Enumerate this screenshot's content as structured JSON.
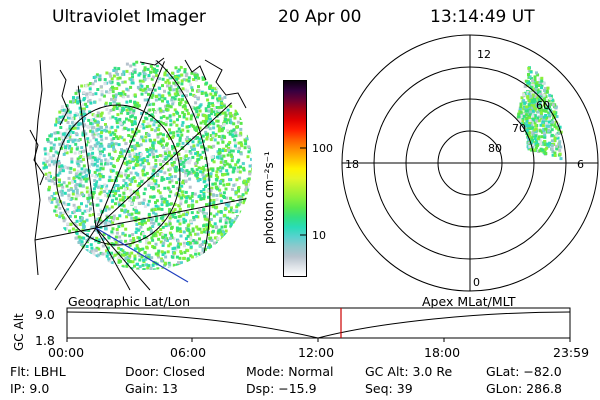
{
  "header": {
    "title": "Ultraviolet Imager",
    "date": "20 Apr 00",
    "time": "13:14:49 UT"
  },
  "colorbar": {
    "unit_label": "photon cm⁻²s⁻¹",
    "tick_labels": [
      "100",
      "10"
    ],
    "colors": [
      "#ffffff",
      "#dde2e7",
      "#b6c3cd",
      "#90c8cc",
      "#59d2cf",
      "#29dcb7",
      "#33e07f",
      "#5ae84b",
      "#8af03a",
      "#b7f22f",
      "#e5f626",
      "#fff200",
      "#ffc000",
      "#ff9000",
      "#ff5a00",
      "#ff1c00",
      "#e00000",
      "#ad0010",
      "#6e0030",
      "#350040",
      "#0b0010"
    ]
  },
  "polar": {
    "mlt_labels": {
      "top": "12",
      "left": "18",
      "right": "6",
      "bottom": "0"
    },
    "lat_labels": [
      "60",
      "70",
      "80"
    ]
  },
  "timeline": {
    "left_label": "Geographic Lat/Lon",
    "right_label": "Apex MLat/MLT",
    "axis_label": "GC Alt",
    "y_ticks": [
      "9.0",
      "1.8"
    ],
    "x_ticks": [
      "00:00",
      "06:00",
      "12:00",
      "18:00",
      "23:59"
    ],
    "current_time_marker_color": "#cc0000"
  },
  "status": {
    "row1": {
      "flt": "Flt: LBHL",
      "door": "Door: Closed",
      "mode": "Mode: Normal",
      "gc_alt": "GC Alt: 3.0 Re",
      "glat": "GLat: −82.0"
    },
    "row2": {
      "ip": "IP:  9.0",
      "gain": "Gain: 13",
      "dsp": "Dsp:  −15.9",
      "seq": "Seq: 39",
      "glon": "GLon: 286.8"
    }
  }
}
